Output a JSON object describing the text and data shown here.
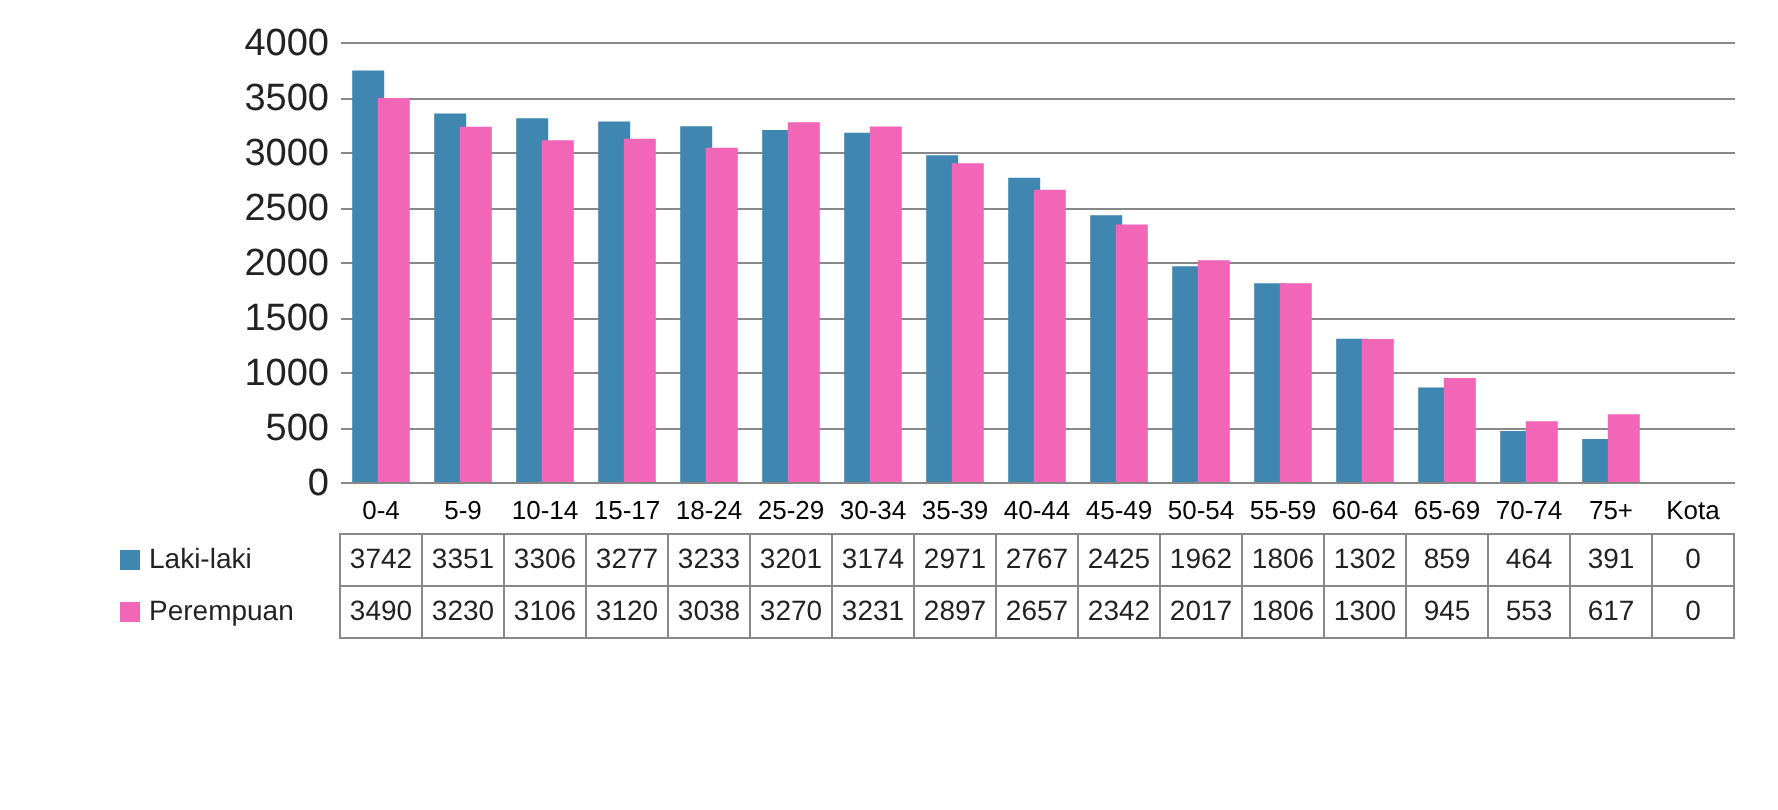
{
  "chart_data": {
    "type": "bar",
    "categories": [
      "0-4",
      "5-9",
      "10-14",
      "15-17",
      "18-24",
      "25-29",
      "30-34",
      "35-39",
      "40-44",
      "45-49",
      "50-54",
      "55-59",
      "60-64",
      "65-69",
      "70-74",
      "75+",
      "Kota"
    ],
    "series": [
      {
        "name": "Laki-laki",
        "color": "#3f87b0",
        "values": [
          3742,
          3351,
          3306,
          3277,
          3233,
          3201,
          3174,
          2971,
          2767,
          2425,
          1962,
          1806,
          1302,
          859,
          464,
          391,
          0
        ]
      },
      {
        "name": "Perempuan",
        "color": "#f266b8",
        "values": [
          3490,
          3230,
          3106,
          3120,
          3038,
          3270,
          3231,
          2897,
          2657,
          2342,
          2017,
          1806,
          1300,
          945,
          553,
          617,
          0
        ]
      }
    ],
    "ylim": [
      0,
      4000
    ],
    "yticks": [
      0,
      500,
      1000,
      1500,
      2000,
      2500,
      3000,
      3500,
      4000
    ],
    "grid": "y",
    "data_labels": true,
    "legend": "bottom left"
  }
}
